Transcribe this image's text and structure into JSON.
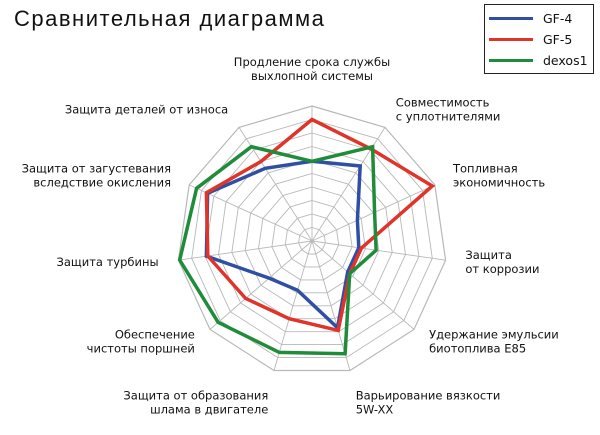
{
  "chart_data": {
    "type": "radar",
    "title": "Сравнительная диаграмма",
    "axes": [
      [
        "Продление срока службы",
        "выхлопной системы"
      ],
      [
        "Совместимость",
        "с уплотнителями"
      ],
      [
        "Топливная",
        "экономичность"
      ],
      [
        "Защита",
        "от коррозии"
      ],
      [
        "Удержание эмульсии",
        "биотоплива E85"
      ],
      [
        "Варьирование вязкости",
        "5W-XX"
      ],
      [
        "Защита от образования",
        "шлама в двигателе"
      ],
      [
        "Обеспечение",
        "чистоты поршней"
      ],
      [
        "Защита турбины"
      ],
      [
        "Защита от загустевания",
        "вследствие окисления"
      ],
      [
        "Защита деталей от износа"
      ]
    ],
    "rlim": [
      0,
      10
    ],
    "grid": true,
    "legend_position": "top-right",
    "series": [
      {
        "name": "GF-4",
        "color": "#2e4fa3",
        "values": [
          5.9,
          6.6,
          3.7,
          3.5,
          3.5,
          6.7,
          3.8,
          4.2,
          7.9,
          8.5,
          6.4
        ]
      },
      {
        "name": "GF-5",
        "color": "#e0332a",
        "values": [
          9.0,
          8.1,
          9.8,
          3.7,
          3.7,
          6.9,
          6.0,
          6.5,
          7.8,
          8.6,
          7.0
        ]
      },
      {
        "name": "dexos1",
        "color": "#1f8c3a",
        "values": [
          5.9,
          8.3,
          5.1,
          4.8,
          3.7,
          8.7,
          8.6,
          9.2,
          9.9,
          9.4,
          8.3
        ]
      }
    ]
  }
}
